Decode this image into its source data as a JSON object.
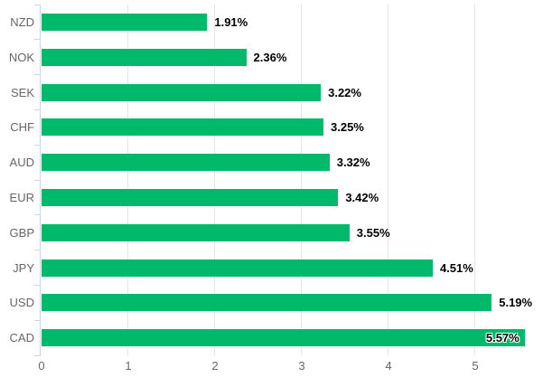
{
  "chart_data": {
    "type": "bar",
    "orientation": "horizontal",
    "title": "",
    "xlabel": "",
    "ylabel": "",
    "legend_position": "none",
    "grid": true,
    "categories": [
      "NZD",
      "NOK",
      "SEK",
      "CHF",
      "AUD",
      "EUR",
      "GBP",
      "JPY",
      "USD",
      "CAD"
    ],
    "values": [
      1.91,
      2.36,
      3.22,
      3.25,
      3.32,
      3.42,
      3.55,
      4.51,
      5.19,
      5.57
    ],
    "value_labels": [
      "1.91%",
      "2.36%",
      "3.22%",
      "3.25%",
      "3.32%",
      "3.42%",
      "3.55%",
      "4.51%",
      "5.19%",
      "5.57%"
    ],
    "x_tick_labels": [
      "0",
      "1",
      "2",
      "3",
      "4",
      "5"
    ],
    "x_tick_values": [
      0,
      1,
      2,
      3,
      4,
      5
    ],
    "xlim": [
      0,
      5.78
    ],
    "colors": {
      "bar": "#00b96a",
      "grid_line": "#e6e6e6",
      "axis_line": "#ccd6eb",
      "tick": "#ccd6eb",
      "category_label": "#666666",
      "x_tick_label": "#666666",
      "value_label": "#000000",
      "background": "#ffffff"
    }
  }
}
